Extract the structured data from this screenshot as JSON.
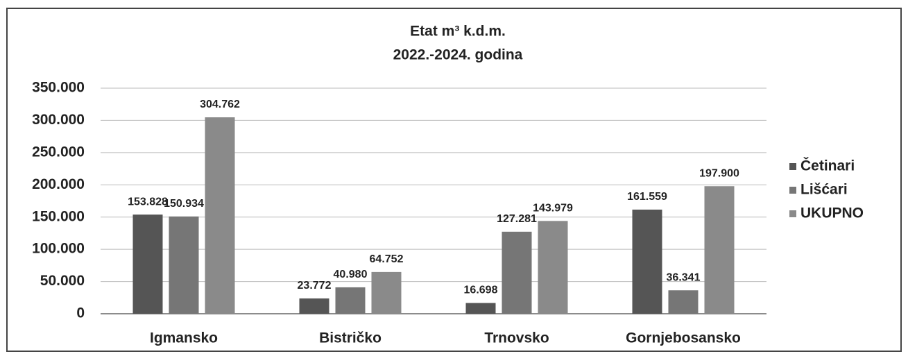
{
  "chart_data": {
    "type": "bar",
    "title": [
      "Etat m³ k.d.m.",
      "2022.-2024. godina"
    ],
    "categories": [
      "Igmansko",
      "Bistričko",
      "Trnovsko",
      "Gornjebosansko"
    ],
    "series": [
      {
        "name": "Četinari",
        "color": "#555555",
        "values": [
          153828,
          23772,
          16698,
          161559
        ],
        "value_labels": [
          "153.828",
          "23.772",
          "16.698",
          "161.559"
        ]
      },
      {
        "name": "Lišćari",
        "color": "#767676",
        "values": [
          150934,
          40980,
          127281,
          36341
        ],
        "value_labels": [
          "150.934",
          "40.980",
          "127.281",
          "36.341"
        ]
      },
      {
        "name": "UKUPNO",
        "color": "#8a8a8a",
        "values": [
          304762,
          64752,
          143979,
          197900
        ],
        "value_labels": [
          "304.762",
          "64.752",
          "143.979",
          "197.900"
        ]
      }
    ],
    "ylim": [
      0,
      350000
    ],
    "yticks": [
      {
        "value": 0,
        "label": "0"
      },
      {
        "value": 50000,
        "label": "50.000"
      },
      {
        "value": 100000,
        "label": "100.000"
      },
      {
        "value": 150000,
        "label": "150.000"
      },
      {
        "value": 200000,
        "label": "200.000"
      },
      {
        "value": 250000,
        "label": "250.000"
      },
      {
        "value": 300000,
        "label": "300.000"
      },
      {
        "value": 350000,
        "label": "350.000"
      }
    ],
    "grid": true,
    "legend": "right"
  }
}
